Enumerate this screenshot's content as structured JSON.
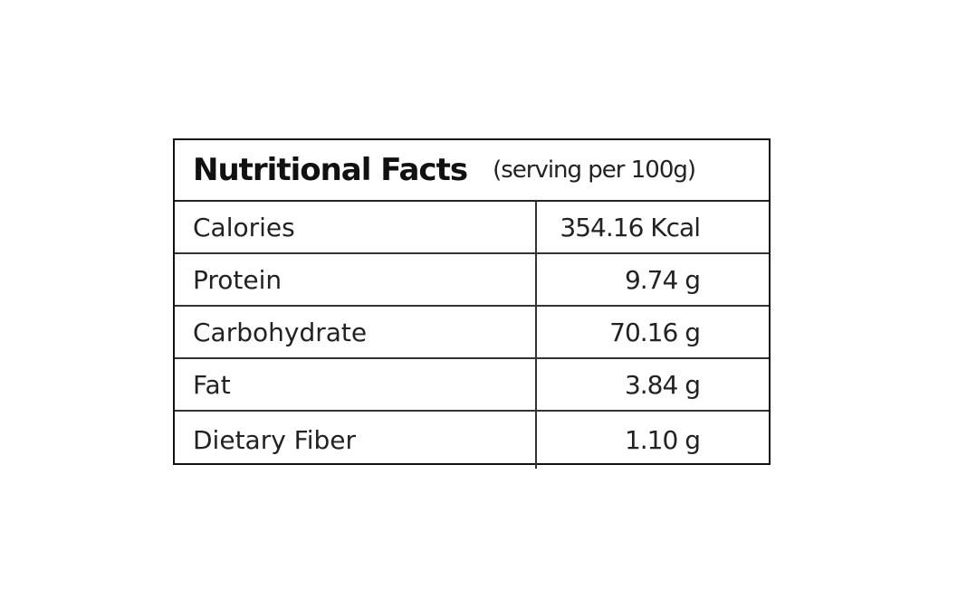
{
  "header": {
    "title": "Nutritional Facts",
    "subtitle": "(serving per 100g)"
  },
  "table": {
    "rows": [
      [
        "Calories",
        "354.16 Kcal"
      ],
      [
        "Protein",
        "9.74 g"
      ],
      [
        "Carbohydrate",
        "70.16 g"
      ],
      [
        "Fat",
        "3.84 g"
      ],
      [
        "Dietary Fiber",
        "1.10 g"
      ]
    ]
  }
}
